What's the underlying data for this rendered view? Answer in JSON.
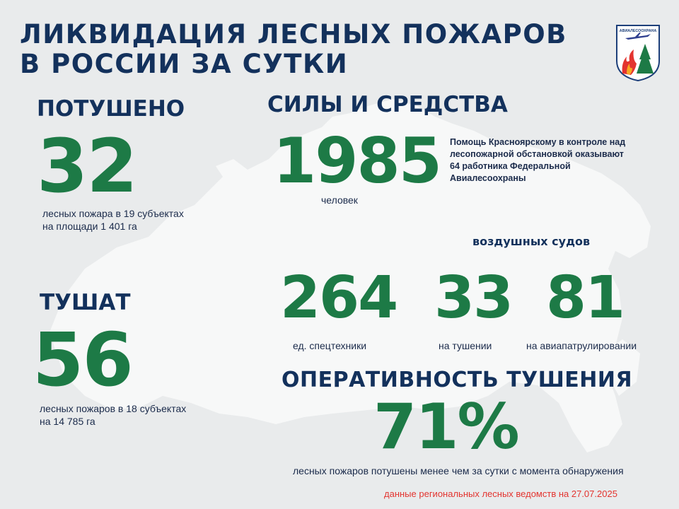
{
  "title": {
    "line1": "ЛИКВИДАЦИЯ ЛЕСНЫХ ПОЖАРОВ",
    "line2": "В РОССИИ ЗА СУТКИ"
  },
  "extinguished": {
    "heading": "ПОТУШЕНО",
    "number": "32",
    "desc_line1": "лесных пожара в 19 субъектах",
    "desc_line2": "на площади  1 401 га"
  },
  "fighting": {
    "heading": "ТУШАТ",
    "number": "56",
    "desc_line1": "лесных пожаров в 18 субъектах",
    "desc_line2": "на 14 785 га"
  },
  "forces": {
    "heading": "СИЛЫ И СРЕДСТВА",
    "people_number": "1985",
    "people_label": "человек",
    "help_text": {
      "line1": "Помощь Красноярскому в контроле над",
      "line2": "лесопожарной обстановкой оказывают",
      "line3": "64 работника Федеральной",
      "line4": "Авиалесоохраны"
    },
    "aircraft_heading": "воздушных судов",
    "equipment_number": "264",
    "equipment_label": "ед. спецтехники",
    "aircraft_fighting_number": "33",
    "aircraft_fighting_label": "на тушении",
    "aircraft_patrol_number": "81",
    "aircraft_patrol_label": "на авиапатрулировании"
  },
  "efficiency": {
    "heading": "ОПЕРАТИВНОСТЬ ТУШЕНИЯ",
    "percent": "71%",
    "desc": "лесных пожаров потушены  менее чем за сутки  с момента обнаружения"
  },
  "source_note": "данные региональных лесных ведомств на 27.07.2025",
  "logo": {
    "text": "АВИАЛЕСООХРАНА",
    "icon": "avialesookhrana-emblem"
  },
  "colors": {
    "title": "#13315c",
    "green": "#1d7a46",
    "note": "#e3342f",
    "background": "#e9ebec",
    "map": "#f6f7f8"
  }
}
